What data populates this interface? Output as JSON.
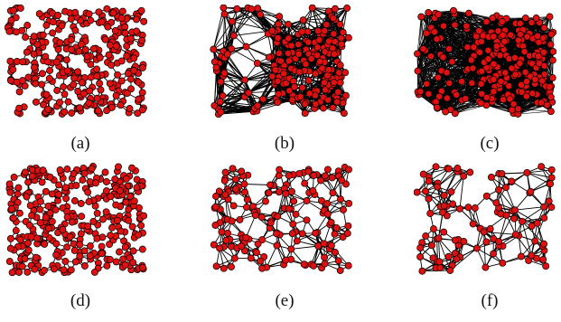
{
  "panels": [
    {
      "id": "a",
      "label": "(a)",
      "node_count": 320,
      "edge_style": "short",
      "neighbor_radius": 0.09,
      "max_edges_per_node": 3,
      "seed": 11
    },
    {
      "id": "b",
      "label": "(b)",
      "node_count": 240,
      "edge_style": "clustered-dense",
      "neighbor_radius": 0.3,
      "max_edges_per_node": 12,
      "seed": 23
    },
    {
      "id": "c",
      "label": "(c)",
      "node_count": 260,
      "edge_style": "very-dense",
      "neighbor_radius": 0.55,
      "max_edges_per_node": 22,
      "seed": 37
    },
    {
      "id": "d",
      "label": "(d)",
      "node_count": 330,
      "edge_style": "short",
      "neighbor_radius": 0.08,
      "max_edges_per_node": 3,
      "seed": 41
    },
    {
      "id": "e",
      "label": "(e)",
      "node_count": 170,
      "edge_style": "medium",
      "neighbor_radius": 0.2,
      "max_edges_per_node": 4,
      "seed": 53
    },
    {
      "id": "f",
      "label": "(f)",
      "node_count": 110,
      "edge_style": "sparse",
      "neighbor_radius": 0.25,
      "max_edges_per_node": 4,
      "seed": 67
    }
  ],
  "colors": {
    "node_fill": "#e01010",
    "node_stroke": "#000000",
    "edge": "#000000"
  }
}
